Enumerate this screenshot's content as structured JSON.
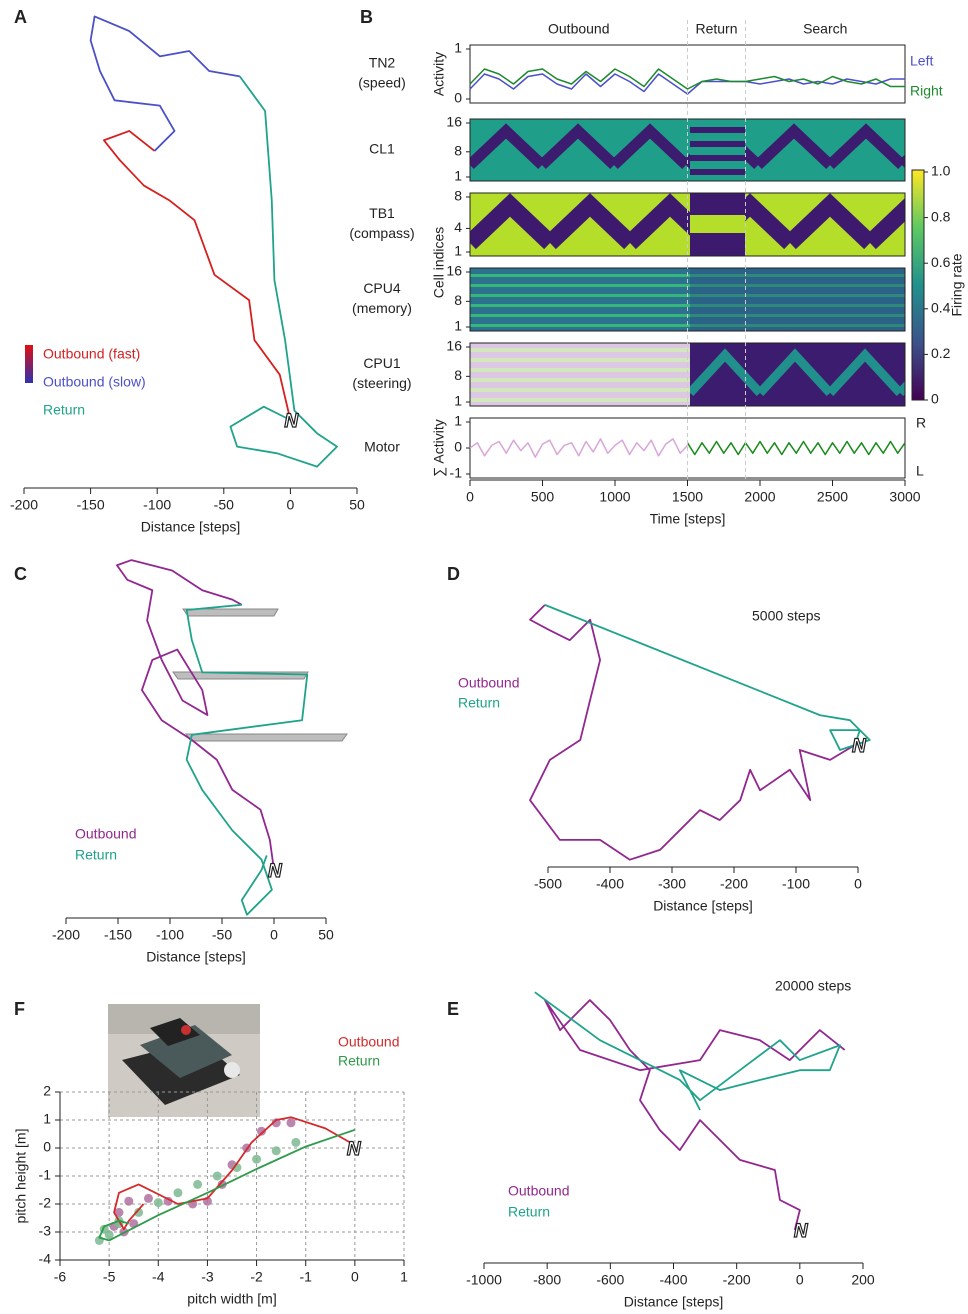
{
  "chart_data": [
    {
      "type": "trajectory",
      "label": "A",
      "xlabel": "Distance [steps]",
      "xlim": [
        -200,
        50
      ],
      "xticks": [
        -200,
        -150,
        -100,
        -50,
        0,
        50
      ],
      "nest_label": "N",
      "series": [
        {
          "name": "Outbound (fast)",
          "color": "#d62020",
          "x": [
            0,
            -8,
            -27,
            -31,
            -57,
            -72,
            -91,
            -110,
            -128,
            -140,
            -121,
            -102
          ],
          "values": [
            0,
            34,
            60,
            90,
            109,
            150,
            165,
            176,
            195,
            210,
            217,
            202
          ]
        },
        {
          "name": "Outbound (slow)",
          "color": "#4b50c8",
          "x": [
            -102,
            -87,
            -98,
            -132,
            -143,
            -150,
            -147,
            -121,
            -98,
            -76,
            -61,
            -38
          ],
          "values": [
            202,
            217,
            236,
            240,
            262,
            285,
            303,
            292,
            273,
            277,
            262,
            258
          ]
        },
        {
          "name": "Return",
          "color": "#1fa38a",
          "x": [
            -38,
            -19,
            -14,
            -12,
            -4,
            0,
            3,
            20,
            35,
            20,
            -10,
            -40,
            -45,
            -20,
            0
          ],
          "values": [
            258,
            232,
            165,
            105,
            60,
            30,
            7,
            -10,
            -20,
            -35,
            -25,
            -20,
            -5,
            10,
            0
          ]
        }
      ]
    },
    {
      "type": "neural",
      "label": "B",
      "xlabel": "Time [steps]",
      "xlim": [
        0,
        3000
      ],
      "xticks": [
        0,
        500,
        1000,
        1500,
        2000,
        2500,
        3000
      ],
      "phases": [
        "Outbound",
        "Return",
        "Search"
      ],
      "phase_bounds": [
        1500,
        1900
      ],
      "ylabels": [
        "Activity",
        "Cell indices",
        "∑ Activity"
      ],
      "colorbar": {
        "label": "Firing rate",
        "lim": [
          0,
          1
        ],
        "ticks": [
          0,
          0.2,
          0.4,
          0.6,
          0.8,
          {
            "value": 1,
            "label": "1.0"
          }
        ]
      },
      "rows": [
        {
          "name": [
            "TN2",
            "(speed)"
          ],
          "ylim": [
            0,
            1
          ],
          "yticks": [
            0,
            1
          ],
          "series": [
            {
              "name": "Left",
              "color": "#4b50c8",
              "x": [
                0,
                100,
                200,
                300,
                400,
                500,
                600,
                700,
                800,
                900,
                1000,
                1100,
                1200,
                1300,
                1400,
                1500,
                1600,
                1700,
                1800,
                1900,
                2000,
                2100,
                2200,
                2300,
                2400,
                2500,
                2600,
                2700,
                2800,
                2900,
                3000
              ],
              "values": [
                0.2,
                0.5,
                0.4,
                0.2,
                0.45,
                0.5,
                0.3,
                0.2,
                0.5,
                0.25,
                0.5,
                0.35,
                0.15,
                0.5,
                0.3,
                0.1,
                0.35,
                0.35,
                0.35,
                0.35,
                0.3,
                0.35,
                0.4,
                0.3,
                0.35,
                0.3,
                0.4,
                0.35,
                0.3,
                0.4,
                0.4
              ]
            },
            {
              "name": "Right",
              "color": "#1e8a2e",
              "x": [
                0,
                100,
                200,
                300,
                400,
                500,
                600,
                700,
                800,
                900,
                1000,
                1100,
                1200,
                1300,
                1400,
                1500,
                1600,
                1700,
                1800,
                1900,
                2000,
                2100,
                2200,
                2300,
                2400,
                2500,
                2600,
                2700,
                2800,
                2900,
                3000
              ],
              "values": [
                0.3,
                0.6,
                0.5,
                0.3,
                0.55,
                0.6,
                0.4,
                0.3,
                0.55,
                0.35,
                0.6,
                0.45,
                0.25,
                0.6,
                0.4,
                0.2,
                0.35,
                0.4,
                0.35,
                0.35,
                0.4,
                0.45,
                0.35,
                0.4,
                0.3,
                0.45,
                0.35,
                0.3,
                0.4,
                0.25,
                0.25
              ]
            }
          ]
        },
        {
          "name": [
            "CL1"
          ],
          "ylim": [
            1,
            16
          ],
          "yticks": [
            1,
            8,
            16
          ]
        },
        {
          "name": [
            "TB1",
            "(compass)"
          ],
          "ylim": [
            1,
            8
          ],
          "yticks": [
            1,
            4,
            8
          ]
        },
        {
          "name": [
            "CPU4",
            "(memory)"
          ],
          "ylim": [
            1,
            16
          ],
          "yticks": [
            1,
            8,
            16
          ]
        },
        {
          "name": [
            "CPU1",
            "(steering)"
          ],
          "ylim": [
            1,
            16
          ],
          "yticks": [
            1,
            8,
            16
          ]
        },
        {
          "name": [
            "Motor"
          ],
          "ylim": [
            -1,
            1
          ],
          "yticks": [
            -1,
            0,
            1
          ],
          "side_labels": [
            "R",
            "L"
          ],
          "series": [
            {
              "color": "#d8a6d8",
              "x": [
                0,
                50,
                100,
                150,
                200,
                250,
                300,
                350,
                400,
                450,
                500,
                550,
                600,
                650,
                700,
                750,
                800,
                850,
                900,
                950,
                1000,
                1050,
                1100,
                1150,
                1200,
                1250,
                1300,
                1350,
                1400,
                1450,
                1500
              ],
              "values": [
                0,
                0.2,
                -0.3,
                0.1,
                0.25,
                -0.2,
                0.3,
                -0.1,
                0.2,
                -0.35,
                0.15,
                0.3,
                -0.25,
                0.1,
                0.2,
                -0.3,
                0.25,
                -0.15,
                0.35,
                -0.2,
                0.1,
                0.3,
                -0.25,
                0.2,
                -0.1,
                0.3,
                -0.3,
                0.15,
                0.35,
                -0.2,
                0.1
              ]
            },
            {
              "color": "#1a8a1a",
              "x": [
                1500,
                1550,
                1600,
                1650,
                1700,
                1750,
                1800,
                1850,
                1900,
                1950,
                2000,
                2050,
                2100,
                2150,
                2200,
                2250,
                2300,
                2350,
                2400,
                2450,
                2500,
                2550,
                2600,
                2650,
                2700,
                2750,
                2800,
                2850,
                2900,
                2950,
                3000
              ],
              "values": [
                0.2,
                -0.25,
                0.2,
                -0.2,
                0.25,
                -0.2,
                0.2,
                -0.25,
                0.2,
                -0.2,
                0.25,
                -0.2,
                0.2,
                -0.25,
                0.2,
                -0.2,
                0.25,
                -0.2,
                0.2,
                -0.25,
                0.2,
                -0.2,
                0.25,
                -0.2,
                0.2,
                -0.25,
                0.2,
                -0.2,
                0.25,
                -0.2,
                0.2
              ]
            }
          ]
        }
      ]
    },
    {
      "type": "trajectory",
      "label": "C",
      "xlabel": "Distance [steps]",
      "xlim": [
        -200,
        50
      ],
      "xticks": [
        -200,
        -150,
        -100,
        -50,
        0,
        50
      ],
      "nest_label": "N",
      "series": [
        {
          "name": "Outbound",
          "color": "#92278f",
          "x": [
            0,
            -4,
            -13,
            -40,
            -55,
            -79,
            -108,
            -127,
            -117,
            -93,
            -69,
            -64,
            -88,
            -108,
            -122,
            -117,
            -141,
            -151,
            -137,
            -98,
            -69,
            -40,
            -31
          ],
          "values": [
            0,
            29,
            58,
            77,
            106,
            125,
            144,
            173,
            202,
            212,
            173,
            149,
            163,
            202,
            240,
            269,
            279,
            293,
            298,
            288,
            269,
            260,
            255
          ]
        },
        {
          "name": "Return",
          "color": "#1fa38a",
          "x": [
            -31,
            -84,
            -79,
            -69,
            32,
            27,
            -79,
            -84,
            -69,
            -40,
            -12,
            -2,
            -26,
            -31,
            -12,
            -7
          ],
          "values": [
            255,
            250,
            221,
            190,
            188,
            144,
            130,
            106,
            77,
            38,
            10,
            -19,
            -43,
            -29,
            0,
            14
          ]
        }
      ]
    },
    {
      "type": "trajectory",
      "label": "D",
      "xlabel": "Distance [steps]",
      "xlim": [
        -500,
        0
      ],
      "xticks": [
        -500,
        -400,
        -300,
        -200,
        -100,
        0
      ],
      "nest_label": "N",
      "annotation": "5000 steps",
      "series": [
        {
          "name": "Outbound",
          "color": "#92278f",
          "x": [
            -5,
            -45,
            -94,
            -77,
            -110,
            -158,
            -174,
            -190,
            -223,
            -255,
            -287,
            -319,
            -368,
            -416,
            -481,
            -529,
            -497,
            -448,
            -432,
            -416,
            -432,
            -465,
            -497,
            -529,
            -505
          ],
          "values": [
            0,
            -24,
            -8,
            -89,
            -40,
            -73,
            -40,
            -89,
            -121,
            -105,
            -137,
            -169,
            -185,
            -153,
            -153,
            -89,
            -24,
            8,
            73,
            137,
            202,
            169,
            185,
            202,
            226
          ]
        },
        {
          "name": "Return",
          "color": "#1fa38a",
          "x": [
            -505,
            -61,
            -13,
            19,
            -29,
            -45,
            3,
            -5
          ],
          "values": [
            226,
            48,
            40,
            8,
            -8,
            24,
            24,
            0
          ]
        }
      ]
    },
    {
      "type": "trajectory",
      "label": "E",
      "xlabel": "Distance [steps]",
      "xlim": [
        -1000,
        200
      ],
      "xticks": [
        -1000,
        -800,
        -600,
        -400,
        -200,
        0,
        200
      ],
      "nest_label": "N",
      "annotation": "20000 steps",
      "series": [
        {
          "name": "Outbound",
          "color": "#92278f",
          "x": [
            -16,
            0,
            -63,
            -79,
            -190,
            -253,
            -316,
            -380,
            -443,
            -506,
            -475,
            -538,
            -601,
            -665,
            -759,
            -807,
            -696,
            -506,
            -316,
            -253,
            -127,
            -32,
            63,
            142
          ],
          "values": [
            0,
            63,
            95,
            190,
            222,
            285,
            348,
            253,
            316,
            411,
            506,
            570,
            665,
            728,
            633,
            728,
            570,
            506,
            538,
            633,
            601,
            538,
            633,
            570
          ]
        },
        {
          "name": "Return",
          "color": "#1fa38a",
          "x": [
            -839,
            -633,
            -380,
            -316,
            -190,
            -63,
            0,
            127,
            95,
            0,
            -127,
            -253,
            -380,
            -316
          ],
          "values": [
            753,
            601,
            475,
            411,
            506,
            601,
            538,
            585,
            506,
            506,
            475,
            443,
            506,
            380
          ]
        }
      ]
    },
    {
      "type": "xy",
      "label": "F",
      "xlabel": "pitch width [m]",
      "ylabel": "pitch height [m]",
      "xlim": [
        -6,
        1
      ],
      "xticks": [
        -6,
        -5,
        -4,
        -3,
        -2,
        -1,
        0,
        1
      ],
      "ylim": [
        -4,
        2
      ],
      "yticks": [
        -4,
        -3,
        -2,
        -1,
        0,
        1,
        2
      ],
      "grid": true,
      "nest_label": "N",
      "series": [
        {
          "name": "Outbound",
          "color": "#d42a2a",
          "x": [
            -0.1,
            -0.6,
            -1.3,
            -1.6,
            -2.1,
            -2.5,
            -3.0,
            -3.6,
            -4.4,
            -4.8,
            -4.9,
            -4.7,
            -4.6,
            -4.3
          ],
          "values": [
            0.2,
            0.7,
            1.1,
            1.0,
            0.2,
            -0.8,
            -1.8,
            -2.0,
            -1.3,
            -1.6,
            -2.3,
            -2.9,
            -2.6,
            -2.0
          ]
        },
        {
          "name": "Return",
          "color": "#2e9a4a",
          "x": [
            0,
            -1,
            -2,
            -3,
            -4,
            -5,
            -5.2,
            -5.1,
            -4.8,
            -4.6
          ],
          "values": [
            0.65,
            0.05,
            -0.75,
            -1.6,
            -2.4,
            -3.3,
            -3.2,
            -2.8,
            -2.6,
            -2.7
          ]
        }
      ],
      "points": [
        {
          "color": "#b070a0",
          "x": [
            -1.3,
            -1.6,
            -1.9,
            -2.2,
            -2.5,
            -2.7,
            -3.0,
            -3.3,
            -3.8,
            -4.2,
            -4.6,
            -4.8,
            -4.9,
            -4.7,
            -4.5
          ],
          "values": [
            0.9,
            0.9,
            0.6,
            0,
            -0.6,
            -1.3,
            -1.9,
            -2.0,
            -1.9,
            -1.8,
            -1.9,
            -2.3,
            -2.8,
            -3.0,
            -2.7
          ]
        },
        {
          "color": "#7cb890",
          "x": [
            -1.2,
            -1.6,
            -2.0,
            -2.4,
            -2.8,
            -3.2,
            -3.6,
            -4.0,
            -4.4,
            -4.8,
            -5.0,
            -5.2,
            -5.1,
            -4.8
          ],
          "values": [
            0.2,
            -0.1,
            -0.4,
            -0.7,
            -1.0,
            -1.3,
            -1.6,
            -1.95,
            -2.3,
            -2.7,
            -3.1,
            -3.3,
            -2.9,
            -2.6
          ]
        }
      ]
    }
  ]
}
